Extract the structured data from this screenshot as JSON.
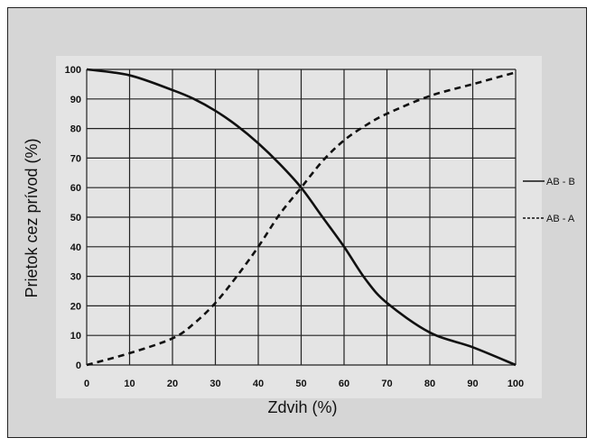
{
  "chart_data": {
    "type": "line",
    "xlabel": "Zdvih (%)",
    "ylabel": "Prietok cez prívod (%)",
    "xlim": [
      0,
      100
    ],
    "ylim": [
      0,
      100
    ],
    "x_ticks": [
      0,
      10,
      20,
      30,
      40,
      50,
      60,
      70,
      80,
      90,
      100
    ],
    "y_ticks": [
      0,
      10,
      20,
      30,
      40,
      50,
      60,
      70,
      80,
      90,
      100
    ],
    "grid": true,
    "legend_placement": "right",
    "series": [
      {
        "name": "AB - B",
        "style": "solid",
        "x": [
          0,
          10,
          20,
          25,
          30,
          35,
          40,
          45,
          50,
          55,
          60,
          65,
          70,
          80,
          90,
          100
        ],
        "y": [
          100,
          98,
          93,
          90,
          86,
          81,
          75,
          68,
          60,
          50,
          40,
          29,
          21,
          11,
          6,
          0
        ]
      },
      {
        "name": "AB - A",
        "style": "dashed",
        "x": [
          0,
          10,
          20,
          25,
          30,
          35,
          40,
          45,
          50,
          55,
          60,
          65,
          70,
          80,
          90,
          100
        ],
        "y": [
          0,
          4,
          9,
          14,
          21,
          30,
          40,
          51,
          60,
          69,
          76,
          81,
          85,
          91,
          95,
          99
        ]
      }
    ]
  }
}
